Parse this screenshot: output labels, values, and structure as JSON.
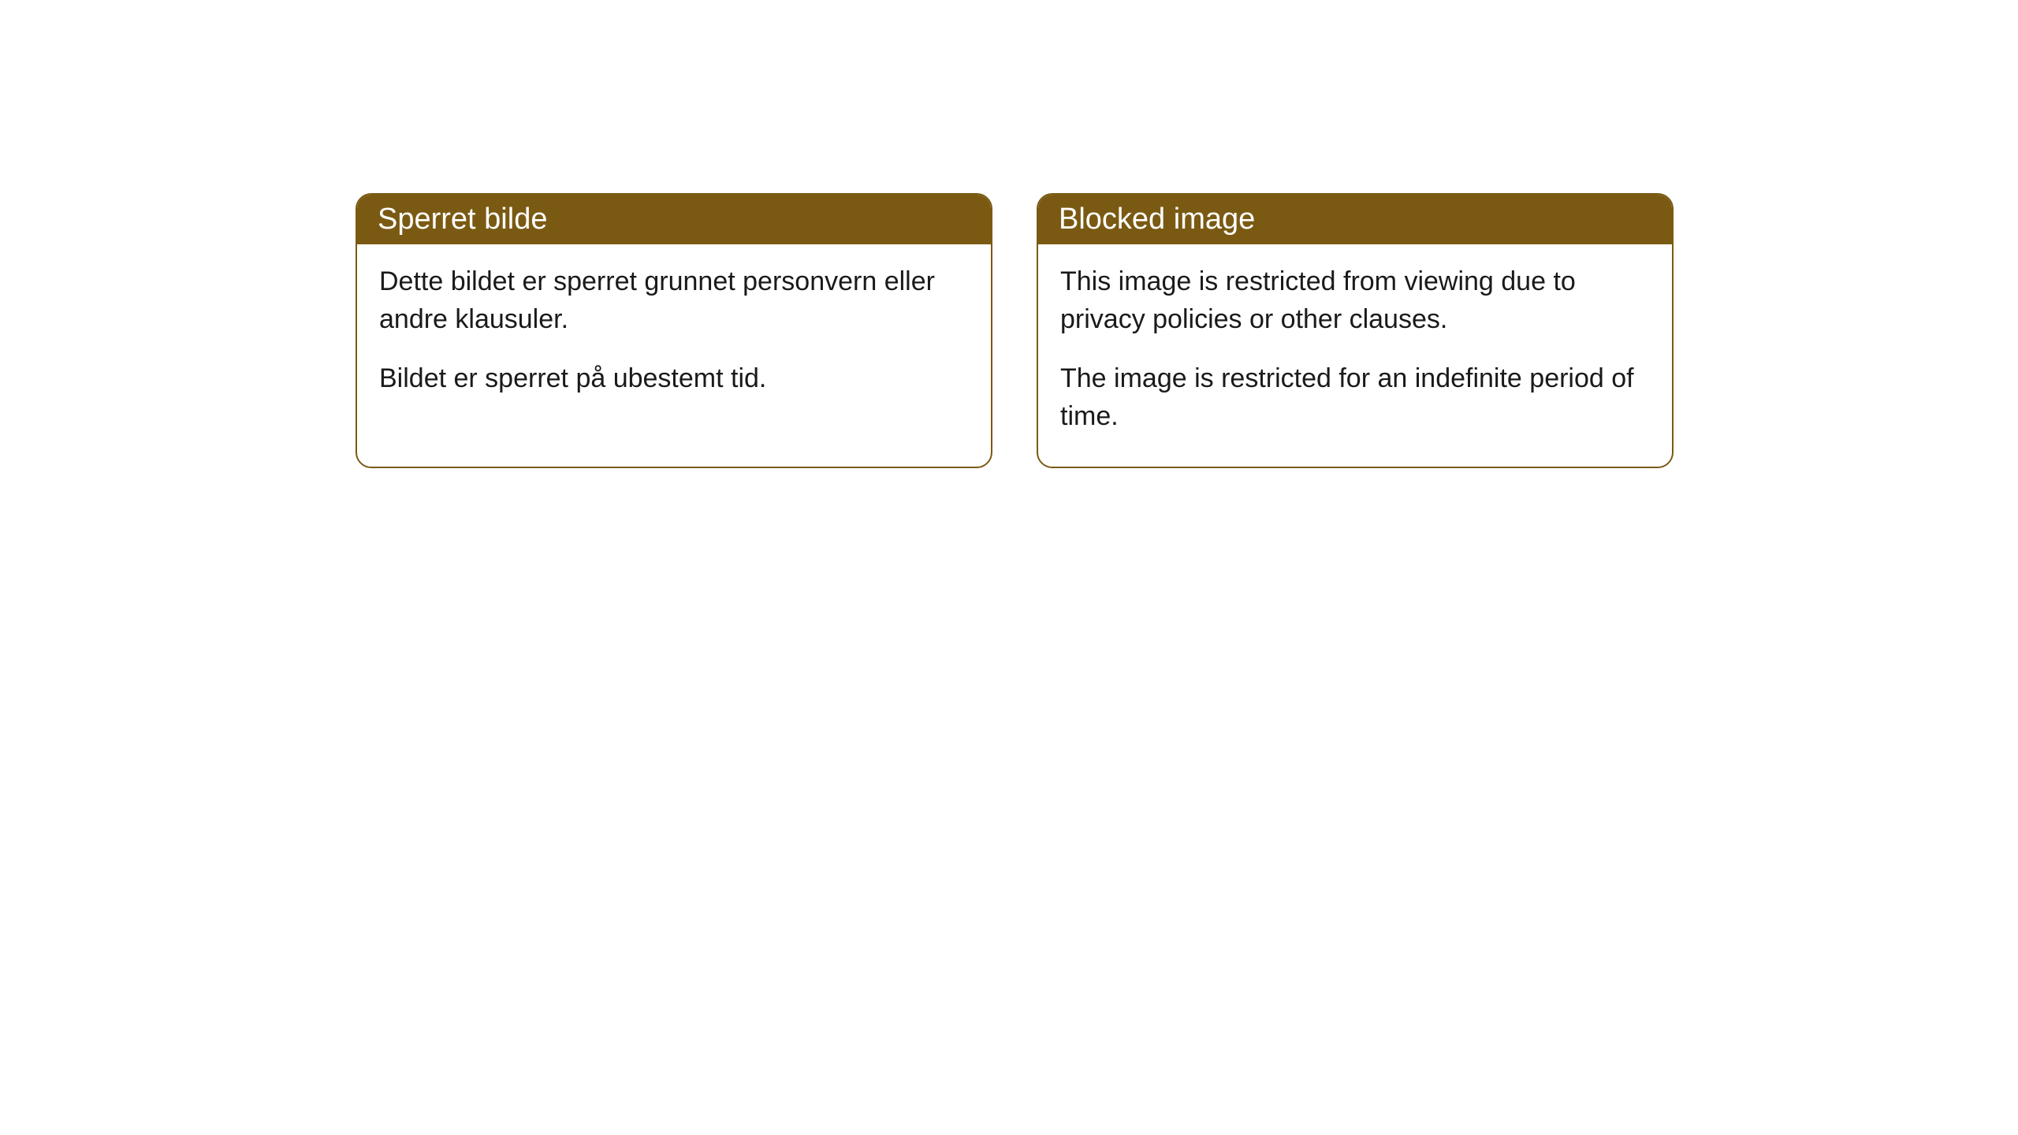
{
  "cards": [
    {
      "title": "Sperret bilde",
      "paragraph1": "Dette bildet er sperret grunnet personvern eller andre klausuler.",
      "paragraph2": "Bildet er sperret på ubestemt tid."
    },
    {
      "title": "Blocked image",
      "paragraph1": "This image is restricted from viewing due to privacy policies or other clauses.",
      "paragraph2": "The image is restricted for an indefinite period of time."
    }
  ],
  "styling": {
    "header_bg_color": "#7a5a13",
    "header_text_color": "#ffffff",
    "border_color": "#7a5a13",
    "body_bg_color": "#ffffff",
    "body_text_color": "#1a1a1a",
    "border_radius": 20,
    "header_fontsize": 38,
    "body_fontsize": 34
  }
}
